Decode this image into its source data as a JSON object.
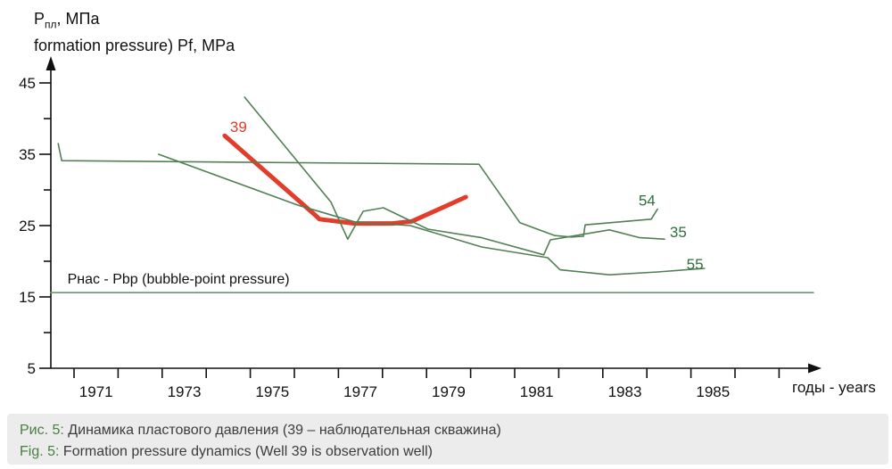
{
  "title": {
    "pressure_symbol": "P",
    "pressure_sub": "пл",
    "pressure_rest": ", МПа",
    "subtitle": "formation pressure) Pf, MPa"
  },
  "caption": {
    "ru_label": "Рис. 5:",
    "ru_text": "Динамика пластового давления (39 – наблюдательная скважина)",
    "en_label": "Fig. 5:",
    "en_text": "Formation pressure dynamics (Well 39 is observation well)"
  },
  "colors": {
    "red_line": "#e23c2a",
    "green_line": "#527f54",
    "green_label": "#2e6f3e",
    "bubble_line": "#6d9770",
    "axis": "#111111",
    "caption_bg": "#ececec",
    "caption_accent": "#47803f"
  },
  "chart_data": {
    "type": "line",
    "title": "Динамика пластового давления / Formation pressure dynamics",
    "ylabel": "Pпл, МПа (formation pressure) Pf, MPa",
    "xlabel": "годы - years",
    "xlim": [
      1970.45,
      1988
    ],
    "ylim": [
      5,
      45
    ],
    "grid": false,
    "legend_position": "inline-labels",
    "y_ticks": [
      5,
      10,
      15,
      20,
      25,
      30,
      35,
      40,
      45
    ],
    "y_tick_labels": [
      5,
      15,
      25,
      35,
      45
    ],
    "x_ticks": [
      1971,
      1972,
      1973,
      1974,
      1975,
      1976,
      1977,
      1978,
      1979,
      1980,
      1981,
      1982,
      1983,
      1984,
      1985,
      1986,
      1987
    ],
    "x_tick_labels": [
      1971,
      1973,
      1975,
      1977,
      1979,
      1981,
      1983,
      1985
    ],
    "series": [
      {
        "id": "well-39",
        "name": "39",
        "color": "#e23c2a",
        "width": 5,
        "points": [
          [
            1974.42,
            37.6
          ],
          [
            1976.45,
            26.6
          ],
          [
            1976.57,
            25.9
          ],
          [
            1977.36,
            25.3
          ],
          [
            1978.23,
            25.3
          ],
          [
            1978.67,
            25.6
          ],
          [
            1979.89,
            29.0
          ]
        ]
      },
      {
        "id": "well-54",
        "name": "54",
        "color": "#527f54",
        "width": 1.6,
        "points": [
          [
            1970.64,
            36.5
          ],
          [
            1970.72,
            34.1
          ],
          [
            1980.19,
            33.6
          ],
          [
            1981.12,
            25.4
          ],
          [
            1981.91,
            23.6
          ],
          [
            1982.28,
            23.4
          ],
          [
            1982.56,
            23.5
          ],
          [
            1982.6,
            25.1
          ],
          [
            1984.1,
            25.9
          ],
          [
            1984.24,
            27.3
          ]
        ]
      },
      {
        "id": "well-35",
        "name": "35",
        "color": "#527f54",
        "width": 1.6,
        "points": [
          [
            1974.87,
            43.0
          ],
          [
            1976.83,
            28.3
          ],
          [
            1977.21,
            23.1
          ],
          [
            1977.56,
            27.0
          ],
          [
            1978.02,
            27.5
          ],
          [
            1979.03,
            24.5
          ],
          [
            1980.25,
            23.3
          ],
          [
            1981.66,
            20.9
          ],
          [
            1981.81,
            23.0
          ],
          [
            1983.15,
            24.4
          ],
          [
            1983.84,
            23.3
          ],
          [
            1984.4,
            23.1
          ]
        ]
      },
      {
        "id": "well-55",
        "name": "55",
        "color": "#527f54",
        "width": 1.6,
        "points": [
          [
            1972.92,
            35.0
          ],
          [
            1976.06,
            27.9
          ],
          [
            1977.38,
            25.5
          ],
          [
            1978.63,
            25.0
          ],
          [
            1980.25,
            22.0
          ],
          [
            1981.75,
            20.5
          ],
          [
            1982.03,
            18.8
          ],
          [
            1983.15,
            18.1
          ],
          [
            1984.24,
            18.5
          ],
          [
            1985.31,
            19.0
          ]
        ]
      },
      {
        "id": "bubble-point-line",
        "name": "Pнас - Pbp",
        "color": "#6d9770",
        "width": 1.6,
        "points": [
          [
            1970.47,
            15.6
          ],
          [
            1987.78,
            15.6
          ]
        ]
      }
    ],
    "series_labels": [
      {
        "text": "39",
        "x": 1974.54,
        "y": 38.1,
        "color": "#e23c2a"
      },
      {
        "text": "54",
        "x": 1983.81,
        "y": 27.8,
        "color": "#2e6f3e"
      },
      {
        "text": "35",
        "x": 1984.52,
        "y": 23.4,
        "color": "#2e6f3e"
      },
      {
        "text": "55",
        "x": 1984.9,
        "y": 18.9,
        "color": "#2e6f3e"
      }
    ],
    "annotation": {
      "text": "Pнас - Pbp (bubble-point pressure)",
      "x": 1970.85,
      "y": 16.9
    }
  }
}
